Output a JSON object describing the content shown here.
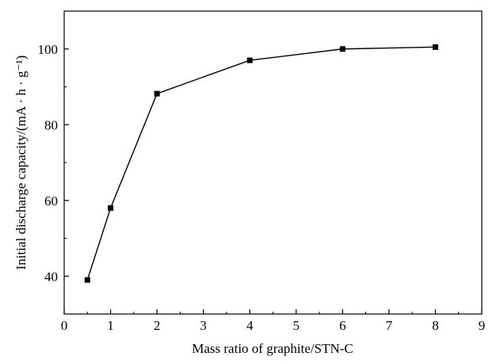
{
  "chart_data": {
    "type": "line",
    "xlabel": "Mass ratio of graphite/STN-C",
    "ylabel": "Initial discharge capacity/(mA · h · g⁻¹)",
    "xlim": [
      0,
      9
    ],
    "ylim": [
      30,
      110
    ],
    "x_ticks": [
      0,
      1,
      2,
      3,
      4,
      5,
      6,
      7,
      8,
      9
    ],
    "y_ticks": [
      40,
      60,
      80,
      100
    ],
    "grid": false,
    "marker": "square",
    "series": [
      {
        "x": [
          0.5,
          1,
          2,
          4,
          6,
          8
        ],
        "y": [
          39,
          58,
          88.2,
          97,
          100,
          100.5
        ]
      }
    ]
  }
}
